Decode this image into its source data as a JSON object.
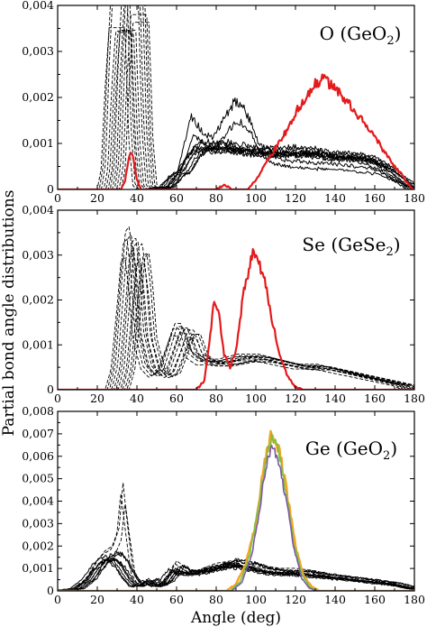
{
  "figure": {
    "ylabel": "Partial bond angle distributions",
    "xlabel": "Angle (deg)"
  },
  "colors": {
    "black": "#000000",
    "red": "#e41a1c",
    "orange": "#f5a623",
    "purple": "#7b5aa6",
    "green": "#7cc043"
  },
  "chart_data": [
    {
      "type": "line",
      "panel_label": "O (GeO",
      "panel_label_sub": "2",
      "panel_label_close": ")",
      "xlim": [
        0,
        180
      ],
      "ylim": [
        0,
        0.004
      ],
      "x_ticks": [
        "0",
        "20",
        "40",
        "60",
        "80",
        "100",
        "120",
        "140",
        "160",
        "180"
      ],
      "y_ticks": [
        "0",
        "0,001",
        "0,002",
        "0,003",
        "0,004"
      ],
      "series": [
        {
          "style": "black-dashed",
          "copies": 12,
          "points": [
            [
              26,
              0
            ],
            [
              28,
              0.0005
            ],
            [
              30,
              0.0025
            ],
            [
              32,
              0.004
            ],
            [
              34,
              0.004
            ],
            [
              36,
              0.004
            ],
            [
              38,
              0.004
            ],
            [
              40,
              0.004
            ],
            [
              42,
              0.0012
            ],
            [
              44,
              0.0001
            ],
            [
              46,
              0
            ]
          ]
        },
        {
          "style": "black-solid",
          "copies": 8,
          "points": [
            [
              0,
              0
            ],
            [
              48,
              0
            ],
            [
              55,
              5e-05
            ],
            [
              60,
              0.0003
            ],
            [
              64,
              0.0004
            ],
            [
              68,
              0.0007
            ],
            [
              72,
              0.0009
            ],
            [
              78,
              0.0009
            ],
            [
              85,
              0.0009
            ],
            [
              92,
              0.00085
            ],
            [
              100,
              0.0008
            ],
            [
              110,
              0.0008
            ],
            [
              120,
              0.0008
            ],
            [
              130,
              0.00078
            ],
            [
              140,
              0.0007
            ],
            [
              150,
              0.0007
            ],
            [
              160,
              0.0006
            ],
            [
              168,
              0.0004
            ],
            [
              174,
              0.0002
            ],
            [
              180,
              0
            ]
          ]
        },
        {
          "style": "black-solid",
          "copies": 2,
          "points": [
            [
              0,
              0
            ],
            [
              55,
              0
            ],
            [
              60,
              0.0002
            ],
            [
              64,
              0.0008
            ],
            [
              68,
              0.0014
            ],
            [
              70,
              0.0013
            ],
            [
              74,
              0.0011
            ],
            [
              78,
              0.001
            ],
            [
              82,
              0.0012
            ],
            [
              86,
              0.0015
            ],
            [
              90,
              0.0017
            ],
            [
              94,
              0.0016
            ],
            [
              98,
              0.0013
            ],
            [
              102,
              0.0009
            ],
            [
              106,
              0.0007
            ],
            [
              112,
              0.0006
            ],
            [
              120,
              0.00055
            ],
            [
              130,
              0.00052
            ],
            [
              140,
              0.0005
            ],
            [
              150,
              0.00045
            ],
            [
              160,
              0.0004
            ],
            [
              170,
              0.0002
            ],
            [
              180,
              0
            ]
          ]
        },
        {
          "style": "red",
          "copies": 1,
          "points": [
            [
              0,
              0
            ],
            [
              32,
              0
            ],
            [
              34,
              0.0002
            ],
            [
              36,
              0.0007
            ],
            [
              37,
              0.0008
            ],
            [
              38,
              0.0007
            ],
            [
              40,
              0.0002
            ],
            [
              42,
              0
            ],
            [
              80,
              0
            ],
            [
              84,
              0.0001
            ],
            [
              88,
              0
            ],
            [
              96,
              0
            ],
            [
              100,
              0.0002
            ],
            [
              104,
              0.0005
            ],
            [
              110,
              0.0009
            ],
            [
              116,
              0.0013
            ],
            [
              122,
              0.0018
            ],
            [
              128,
              0.0022
            ],
            [
              134,
              0.0024
            ],
            [
              138,
              0.0023
            ],
            [
              144,
              0.002
            ],
            [
              150,
              0.0017
            ],
            [
              156,
              0.0014
            ],
            [
              162,
              0.001
            ],
            [
              168,
              0.0006
            ],
            [
              174,
              0.0003
            ],
            [
              178,
              5e-05
            ],
            [
              180,
              0
            ]
          ]
        }
      ]
    },
    {
      "type": "line",
      "panel_label": "Se (GeSe",
      "panel_label_sub": "2",
      "panel_label_close": ")",
      "xlim": [
        0,
        180
      ],
      "ylim": [
        0,
        0.004
      ],
      "x_ticks": [
        "0",
        "20",
        "40",
        "60",
        "80",
        "100",
        "120",
        "140",
        "160",
        "180"
      ],
      "y_ticks": [
        "0",
        "0,001",
        "0,002",
        "0,003",
        "0,004"
      ],
      "series": [
        {
          "style": "black-dashed",
          "copies": 12,
          "points": [
            [
              0,
              0
            ],
            [
              30,
              0
            ],
            [
              33,
              0.0005
            ],
            [
              36,
              0.002
            ],
            [
              38,
              0.0031
            ],
            [
              40,
              0.0032
            ],
            [
              42,
              0.0024
            ],
            [
              44,
              0.0012
            ],
            [
              48,
              0.0005
            ],
            [
              52,
              0.0003
            ],
            [
              56,
              0.0004
            ],
            [
              60,
              0.0009
            ],
            [
              63,
              0.0013
            ],
            [
              66,
              0.0013
            ],
            [
              70,
              0.0008
            ],
            [
              76,
              0.0006
            ],
            [
              85,
              0.0006
            ],
            [
              95,
              0.0007
            ],
            [
              105,
              0.0007
            ],
            [
              115,
              0.0006
            ],
            [
              125,
              0.0005
            ],
            [
              135,
              0.0005
            ],
            [
              145,
              0.0004
            ],
            [
              155,
              0.0003
            ],
            [
              165,
              0.0002
            ],
            [
              175,
              0.0001
            ],
            [
              180,
              0
            ]
          ]
        },
        {
          "style": "red",
          "copies": 1,
          "points": [
            [
              0,
              0
            ],
            [
              70,
              0
            ],
            [
              74,
              0.0002
            ],
            [
              77,
              0.0012
            ],
            [
              79,
              0.002
            ],
            [
              81,
              0.0018
            ],
            [
              84,
              0.0008
            ],
            [
              87,
              0.0005
            ],
            [
              90,
              0.0009
            ],
            [
              94,
              0.0022
            ],
            [
              98,
              0.003
            ],
            [
              100,
              0.003
            ],
            [
              104,
              0.0025
            ],
            [
              108,
              0.0016
            ],
            [
              112,
              0.0008
            ],
            [
              116,
              0.0003
            ],
            [
              120,
              5e-05
            ],
            [
              124,
              0
            ],
            [
              180,
              0
            ]
          ]
        }
      ]
    },
    {
      "type": "line",
      "panel_label": "Ge (GeO",
      "panel_label_sub": "2",
      "panel_label_close": ")",
      "xlim": [
        0,
        180
      ],
      "ylim": [
        0,
        0.008
      ],
      "x_ticks": [
        "0",
        "20",
        "40",
        "60",
        "80",
        "100",
        "120",
        "140",
        "160",
        "180"
      ],
      "y_ticks": [
        "0",
        "0,001",
        "0,002",
        "0,003",
        "0,004",
        "0,005",
        "0,006",
        "0,007",
        "0,008"
      ],
      "series": [
        {
          "style": "black-dashed",
          "copies": 3,
          "points": [
            [
              0,
              0
            ],
            [
              10,
              0.0001
            ],
            [
              16,
              0.0006
            ],
            [
              20,
              0.0012
            ],
            [
              24,
              0.0016
            ],
            [
              28,
              0.0018
            ],
            [
              31,
              0.0025
            ],
            [
              33,
              0.0043
            ],
            [
              35,
              0.0028
            ],
            [
              38,
              0.0008
            ],
            [
              42,
              0.0002
            ],
            [
              46,
              0.0005
            ],
            [
              50,
              0.0002
            ],
            [
              55,
              0.0004
            ],
            [
              60,
              0.0012
            ],
            [
              65,
              0.0009
            ],
            [
              70,
              0.0008
            ],
            [
              80,
              0.0011
            ],
            [
              88,
              0.0012
            ],
            [
              96,
              0.0012
            ],
            [
              104,
              0.001
            ],
            [
              112,
              0.0009
            ],
            [
              120,
              0.0009
            ],
            [
              130,
              0.0008
            ],
            [
              140,
              0.0006
            ],
            [
              150,
              0.0005
            ],
            [
              160,
              0.0004
            ],
            [
              170,
              0.0003
            ],
            [
              180,
              0.0001
            ]
          ]
        },
        {
          "style": "black-solid",
          "copies": 8,
          "points": [
            [
              0,
              0
            ],
            [
              10,
              0.0001
            ],
            [
              16,
              0.0005
            ],
            [
              20,
              0.001
            ],
            [
              24,
              0.0014
            ],
            [
              28,
              0.0015
            ],
            [
              32,
              0.0012
            ],
            [
              36,
              0.0006
            ],
            [
              40,
              0.0002
            ],
            [
              44,
              0.0003
            ],
            [
              47,
              0.0005
            ],
            [
              50,
              0.0002
            ],
            [
              55,
              0.0004
            ],
            [
              60,
              0.001
            ],
            [
              64,
              0.0008
            ],
            [
              70,
              0.0008
            ],
            [
              80,
              0.001
            ],
            [
              88,
              0.0012
            ],
            [
              96,
              0.0011
            ],
            [
              104,
              0.0009
            ],
            [
              112,
              0.0008
            ],
            [
              120,
              0.0008
            ],
            [
              130,
              0.0007
            ],
            [
              140,
              0.0006
            ],
            [
              150,
              0.0005
            ],
            [
              160,
              0.0004
            ],
            [
              170,
              0.0003
            ],
            [
              180,
              0.0001
            ]
          ]
        },
        {
          "style": "orange",
          "copies": 1,
          "points": [
            [
              0,
              0
            ],
            [
              85,
              0
            ],
            [
              90,
              0.0003
            ],
            [
              95,
              0.0012
            ],
            [
              100,
              0.003
            ],
            [
              104,
              0.0055
            ],
            [
              108,
              0.007
            ],
            [
              112,
              0.0062
            ],
            [
              116,
              0.0042
            ],
            [
              120,
              0.002
            ],
            [
              124,
              0.0007
            ],
            [
              128,
              0.0002
            ],
            [
              132,
              0
            ],
            [
              180,
              0
            ]
          ]
        },
        {
          "style": "green",
          "copies": 1,
          "points": [
            [
              0,
              0
            ],
            [
              87,
              0
            ],
            [
              92,
              0.0004
            ],
            [
              97,
              0.0016
            ],
            [
              101,
              0.0036
            ],
            [
              105,
              0.0058
            ],
            [
              108,
              0.0069
            ],
            [
              111,
              0.0064
            ],
            [
              115,
              0.0045
            ],
            [
              119,
              0.0022
            ],
            [
              123,
              0.0008
            ],
            [
              127,
              0.0002
            ],
            [
              131,
              0
            ],
            [
              180,
              0
            ]
          ]
        },
        {
          "style": "purple",
          "copies": 1,
          "points": [
            [
              0,
              0
            ],
            [
              88,
              0
            ],
            [
              93,
              0.0004
            ],
            [
              98,
              0.0016
            ],
            [
              102,
              0.0037
            ],
            [
              105,
              0.0055
            ],
            [
              108,
              0.0066
            ],
            [
              111,
              0.006
            ],
            [
              115,
              0.0042
            ],
            [
              119,
              0.002
            ],
            [
              123,
              0.0006
            ],
            [
              127,
              0.0001
            ],
            [
              131,
              0
            ],
            [
              180,
              0
            ]
          ]
        }
      ]
    }
  ]
}
